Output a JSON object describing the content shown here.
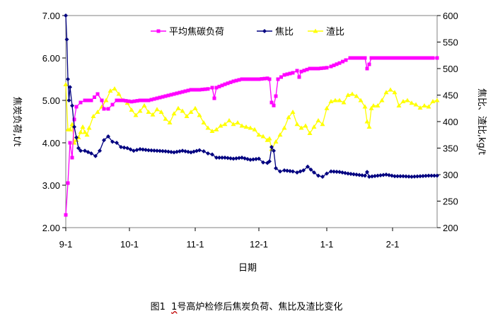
{
  "chart_data": {
    "type": "line",
    "title": "",
    "caption_prefix": "图1",
    "caption_number": "1",
    "caption_text": "号高炉检修后焦炭负荷、焦比及渣比变化",
    "xlabel": "日期",
    "ylabel_left": "焦炭负荷,t/t",
    "ylabel_right": "焦比、渣比,kg/t",
    "x_categories": [
      "9-1",
      "10-1",
      "11-1",
      "12-1",
      "1-1",
      "2-1"
    ],
    "ylim_left": [
      2.0,
      7.0
    ],
    "yticks_left": [
      "2.00",
      "3.00",
      "4.00",
      "5.00",
      "6.00",
      "7.00"
    ],
    "ylim_right": [
      200,
      600
    ],
    "yticks_right": [
      "200",
      "250",
      "300",
      "350",
      "400",
      "450",
      "500",
      "550",
      "600"
    ],
    "legend_position": "top-center",
    "colors": {
      "coke_load": "#ff00ff",
      "coke_ratio": "#000080",
      "slag_ratio": "#ffff00"
    },
    "series": [
      {
        "key": "coke_load",
        "name": "平均焦碳负荷",
        "axis": "left",
        "marker": "square",
        "points": [
          [
            1,
            2.3
          ],
          [
            2,
            3.05
          ],
          [
            3,
            4.0
          ],
          [
            4,
            3.65
          ],
          [
            5,
            4.55
          ],
          [
            6,
            4.85
          ],
          [
            8,
            4.95
          ],
          [
            10,
            5.0
          ],
          [
            13,
            5.0
          ],
          [
            16,
            5.15
          ],
          [
            18,
            5.0
          ],
          [
            19,
            4.8
          ],
          [
            21,
            4.8
          ],
          [
            23,
            4.9
          ],
          [
            25,
            5.0
          ],
          [
            28,
            5.0
          ],
          [
            32,
            4.97
          ],
          [
            36,
            5.0
          ],
          [
            40,
            5.0
          ],
          [
            44,
            5.05
          ],
          [
            48,
            5.1
          ],
          [
            52,
            5.15
          ],
          [
            56,
            5.2
          ],
          [
            60,
            5.25
          ],
          [
            64,
            5.25
          ],
          [
            68,
            5.27
          ],
          [
            70,
            5.3
          ],
          [
            71,
            5.05
          ],
          [
            72,
            5.3
          ],
          [
            76,
            5.38
          ],
          [
            80,
            5.45
          ],
          [
            84,
            5.5
          ],
          [
            88,
            5.5
          ],
          [
            92,
            5.5
          ],
          [
            96,
            5.52
          ],
          [
            97,
            5.5
          ],
          [
            98,
            4.95
          ],
          [
            99,
            4.88
          ],
          [
            100,
            5.1
          ],
          [
            101,
            5.5
          ],
          [
            104,
            5.6
          ],
          [
            108,
            5.65
          ],
          [
            110,
            5.7
          ],
          [
            111,
            5.55
          ],
          [
            112,
            5.68
          ],
          [
            116,
            5.75
          ],
          [
            120,
            5.75
          ],
          [
            124,
            5.77
          ],
          [
            126,
            5.8
          ],
          [
            130,
            5.88
          ],
          [
            133,
            5.95
          ],
          [
            135,
            6.0
          ],
          [
            138,
            6.0
          ],
          [
            142,
            6.0
          ],
          [
            143,
            5.75
          ],
          [
            144,
            5.85
          ],
          [
            145,
            6.0
          ],
          [
            150,
            6.0
          ],
          [
            156,
            6.0
          ],
          [
            162,
            6.0
          ],
          [
            168,
            6.0
          ],
          [
            174,
            6.0
          ],
          [
            176,
            6.0
          ]
        ]
      },
      {
        "key": "coke_ratio",
        "name": "焦比",
        "axis": "right",
        "marker": "diamond",
        "points": [
          [
            1,
            600
          ],
          [
            1.5,
            555
          ],
          [
            2,
            480
          ],
          [
            2.5,
            440
          ],
          [
            3,
            465
          ],
          [
            4,
            430
          ],
          [
            5,
            390
          ],
          [
            6,
            370
          ],
          [
            7,
            350
          ],
          [
            8,
            345
          ],
          [
            10,
            345
          ],
          [
            13,
            340
          ],
          [
            15,
            335
          ],
          [
            17,
            345
          ],
          [
            19,
            365
          ],
          [
            21,
            372
          ],
          [
            23,
            362
          ],
          [
            25,
            360
          ],
          [
            27,
            352
          ],
          [
            30,
            350
          ],
          [
            33,
            345
          ],
          [
            36,
            348
          ],
          [
            40,
            346
          ],
          [
            44,
            345
          ],
          [
            48,
            344
          ],
          [
            52,
            342
          ],
          [
            56,
            345
          ],
          [
            60,
            342
          ],
          [
            64,
            346
          ],
          [
            66,
            344
          ],
          [
            68,
            340
          ],
          [
            70,
            338
          ],
          [
            72,
            332
          ],
          [
            76,
            332
          ],
          [
            80,
            330
          ],
          [
            84,
            332
          ],
          [
            88,
            328
          ],
          [
            92,
            330
          ],
          [
            94,
            323
          ],
          [
            96,
            322
          ],
          [
            97,
            325
          ],
          [
            98,
            352
          ],
          [
            99,
            345
          ],
          [
            100,
            312
          ],
          [
            102,
            306
          ],
          [
            104,
            308
          ],
          [
            108,
            306
          ],
          [
            110,
            304
          ],
          [
            113,
            308
          ],
          [
            115,
            315
          ],
          [
            118,
            304
          ],
          [
            120,
            298
          ],
          [
            122,
            296
          ],
          [
            124,
            302
          ],
          [
            126,
            306
          ],
          [
            130,
            305
          ],
          [
            134,
            302
          ],
          [
            138,
            300
          ],
          [
            142,
            298
          ],
          [
            143,
            305
          ],
          [
            144,
            296
          ],
          [
            148,
            298
          ],
          [
            152,
            300
          ],
          [
            156,
            297
          ],
          [
            160,
            297
          ],
          [
            164,
            296
          ],
          [
            168,
            297
          ],
          [
            172,
            298
          ],
          [
            176,
            298
          ]
        ]
      },
      {
        "key": "slag_ratio",
        "name": "渣比",
        "axis": "right",
        "marker": "triangle",
        "points": [
          [
            1,
            470
          ],
          [
            2,
            385
          ],
          [
            3,
            385
          ],
          [
            4,
            395
          ],
          [
            5,
            360
          ],
          [
            6,
            365
          ],
          [
            7,
            370
          ],
          [
            8,
            380
          ],
          [
            9,
            390
          ],
          [
            10,
            380
          ],
          [
            11,
            375
          ],
          [
            12,
            388
          ],
          [
            14,
            410
          ],
          [
            16,
            418
          ],
          [
            18,
            428
          ],
          [
            20,
            440
          ],
          [
            22,
            458
          ],
          [
            24,
            462
          ],
          [
            26,
            452
          ],
          [
            28,
            440
          ],
          [
            30,
            435
          ],
          [
            32,
            422
          ],
          [
            34,
            412
          ],
          [
            36,
            420
          ],
          [
            38,
            430
          ],
          [
            40,
            418
          ],
          [
            42,
            413
          ],
          [
            44,
            423
          ],
          [
            46,
            418
          ],
          [
            48,
            405
          ],
          [
            50,
            398
          ],
          [
            52,
            415
          ],
          [
            54,
            425
          ],
          [
            56,
            420
          ],
          [
            58,
            410
          ],
          [
            60,
            418
          ],
          [
            62,
            425
          ],
          [
            64,
            412
          ],
          [
            66,
            398
          ],
          [
            68,
            388
          ],
          [
            70,
            382
          ],
          [
            72,
            385
          ],
          [
            74,
            392
          ],
          [
            76,
            395
          ],
          [
            78,
            402
          ],
          [
            80,
            395
          ],
          [
            82,
            398
          ],
          [
            84,
            392
          ],
          [
            86,
            390
          ],
          [
            88,
            388
          ],
          [
            90,
            385
          ],
          [
            92,
            375
          ],
          [
            94,
            372
          ],
          [
            96,
            365
          ],
          [
            97,
            368
          ],
          [
            98,
            348
          ],
          [
            100,
            362
          ],
          [
            102,
            375
          ],
          [
            104,
            388
          ],
          [
            106,
            408
          ],
          [
            108,
            418
          ],
          [
            110,
            395
          ],
          [
            112,
            388
          ],
          [
            114,
            392
          ],
          [
            116,
            378
          ],
          [
            118,
            390
          ],
          [
            120,
            402
          ],
          [
            122,
            395
          ],
          [
            124,
            425
          ],
          [
            126,
            438
          ],
          [
            128,
            440
          ],
          [
            130,
            440
          ],
          [
            132,
            436
          ],
          [
            134,
            450
          ],
          [
            136,
            452
          ],
          [
            138,
            448
          ],
          [
            140,
            440
          ],
          [
            142,
            428
          ],
          [
            143,
            400
          ],
          [
            144,
            390
          ],
          [
            145,
            425
          ],
          [
            146,
            430
          ],
          [
            148,
            430
          ],
          [
            150,
            440
          ],
          [
            152,
            455
          ],
          [
            154,
            460
          ],
          [
            156,
            455
          ],
          [
            158,
            430
          ],
          [
            160,
            438
          ],
          [
            162,
            440
          ],
          [
            164,
            435
          ],
          [
            166,
            432
          ],
          [
            168,
            426
          ],
          [
            170,
            430
          ],
          [
            172,
            428
          ],
          [
            174,
            438
          ],
          [
            176,
            440
          ]
        ]
      }
    ]
  }
}
